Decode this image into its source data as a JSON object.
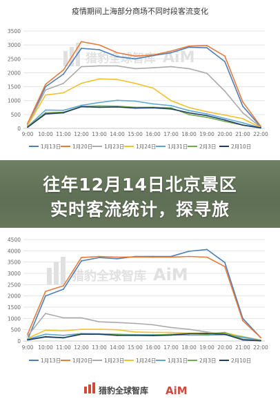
{
  "headline": {
    "line1": "往年12月14日北京景区",
    "line2": "实时客流统计，探寻旅"
  },
  "watermark": {
    "text": "猎豹全球智库",
    "brand": "AiM"
  },
  "colors": {
    "axis_text": "#666666",
    "grid": "#e3e3e3",
    "title": "#333333",
    "banner": "#63735a"
  },
  "chart_data": [
    {
      "type": "line",
      "title": "疫情期间上海部分商场不同时段客流变化",
      "x": [
        "9:00",
        "10:00",
        "11:00",
        "12:00",
        "13:00",
        "14:00",
        "15:00",
        "16:00",
        "17:00",
        "18:00",
        "19:00",
        "20:00",
        "21:00",
        "22:00"
      ],
      "ylim": [
        0,
        3500
      ],
      "yticks": [
        0,
        500,
        1000,
        1500,
        2000,
        2500,
        3000,
        3500
      ],
      "grid": true,
      "legend_position": "bottom",
      "series": [
        {
          "name": "1月13日",
          "color": "#4a7ebb",
          "values": [
            150,
            1500,
            1950,
            2880,
            2830,
            2580,
            2500,
            2620,
            2720,
            2920,
            2900,
            2400,
            800,
            60
          ]
        },
        {
          "name": "1月20日",
          "color": "#e87a3c",
          "values": [
            180,
            1580,
            2100,
            3120,
            3000,
            2720,
            2600,
            2640,
            2780,
            2960,
            2980,
            2600,
            950,
            80
          ]
        },
        {
          "name": "1月23日",
          "color": "#a9a9a9",
          "values": [
            120,
            1380,
            1620,
            2220,
            2250,
            2250,
            2150,
            2180,
            2220,
            2150,
            1980,
            1340,
            560,
            40
          ]
        },
        {
          "name": "1月24日",
          "color": "#f2c12e",
          "values": [
            100,
            1200,
            1280,
            1620,
            1780,
            1760,
            1620,
            1450,
            1000,
            750,
            600,
            480,
            350,
            30
          ]
        },
        {
          "name": "1月31日",
          "color": "#5aa6d6",
          "values": [
            60,
            660,
            650,
            830,
            930,
            1010,
            980,
            880,
            820,
            640,
            520,
            360,
            200,
            20
          ]
        },
        {
          "name": "2月3日",
          "color": "#6fab46",
          "values": [
            50,
            560,
            580,
            790,
            810,
            800,
            760,
            760,
            740,
            500,
            400,
            250,
            120,
            15
          ]
        },
        {
          "name": "2月10日",
          "color": "#1f3a64",
          "values": [
            40,
            520,
            560,
            780,
            760,
            770,
            730,
            740,
            700,
            560,
            460,
            300,
            120,
            20
          ]
        }
      ]
    },
    {
      "type": "line",
      "title": "",
      "x": [
        "9:00",
        "10:00",
        "11:00",
        "12:00",
        "13:00",
        "14:00",
        "15:00",
        "16:00",
        "17:00",
        "18:00",
        "19:00",
        "20:00",
        "21:00",
        "22:00"
      ],
      "ylim": [
        0,
        4500
      ],
      "yticks": [
        0,
        500,
        1000,
        1500,
        2000,
        2500,
        3000,
        3500,
        4000,
        4500
      ],
      "grid": true,
      "legend_position": "bottom",
      "series": [
        {
          "name": "1月13日",
          "color": "#4a7ebb",
          "values": [
            60,
            2000,
            2300,
            3550,
            3700,
            3650,
            3750,
            3750,
            3750,
            3980,
            4060,
            3480,
            1000,
            150
          ]
        },
        {
          "name": "1月20日",
          "color": "#e87a3c",
          "values": [
            300,
            2200,
            2450,
            3700,
            3750,
            3720,
            3730,
            3720,
            3720,
            3750,
            3720,
            3300,
            900,
            150
          ]
        },
        {
          "name": "1月23日",
          "color": "#a9a9a9",
          "values": [
            220,
            1220,
            1030,
            1030,
            850,
            820,
            780,
            720,
            600,
            520,
            400,
            300,
            150,
            30
          ]
        },
        {
          "name": "1月24日",
          "color": "#f2c12e",
          "values": [
            120,
            480,
            450,
            520,
            520,
            500,
            400,
            380,
            380,
            350,
            360,
            360,
            200,
            40
          ]
        },
        {
          "name": "1月31日",
          "color": "#5aa6d6",
          "values": [
            80,
            300,
            250,
            330,
            320,
            300,
            280,
            280,
            280,
            260,
            260,
            280,
            180,
            30
          ]
        },
        {
          "name": "2月3日",
          "color": "#6fab46",
          "values": [
            60,
            200,
            150,
            320,
            300,
            280,
            260,
            260,
            300,
            330,
            300,
            380,
            80,
            20
          ]
        },
        {
          "name": "2月10日",
          "color": "#1f3a64",
          "values": [
            50,
            180,
            140,
            300,
            300,
            250,
            250,
            240,
            260,
            320,
            330,
            300,
            50,
            10
          ]
        }
      ]
    }
  ]
}
